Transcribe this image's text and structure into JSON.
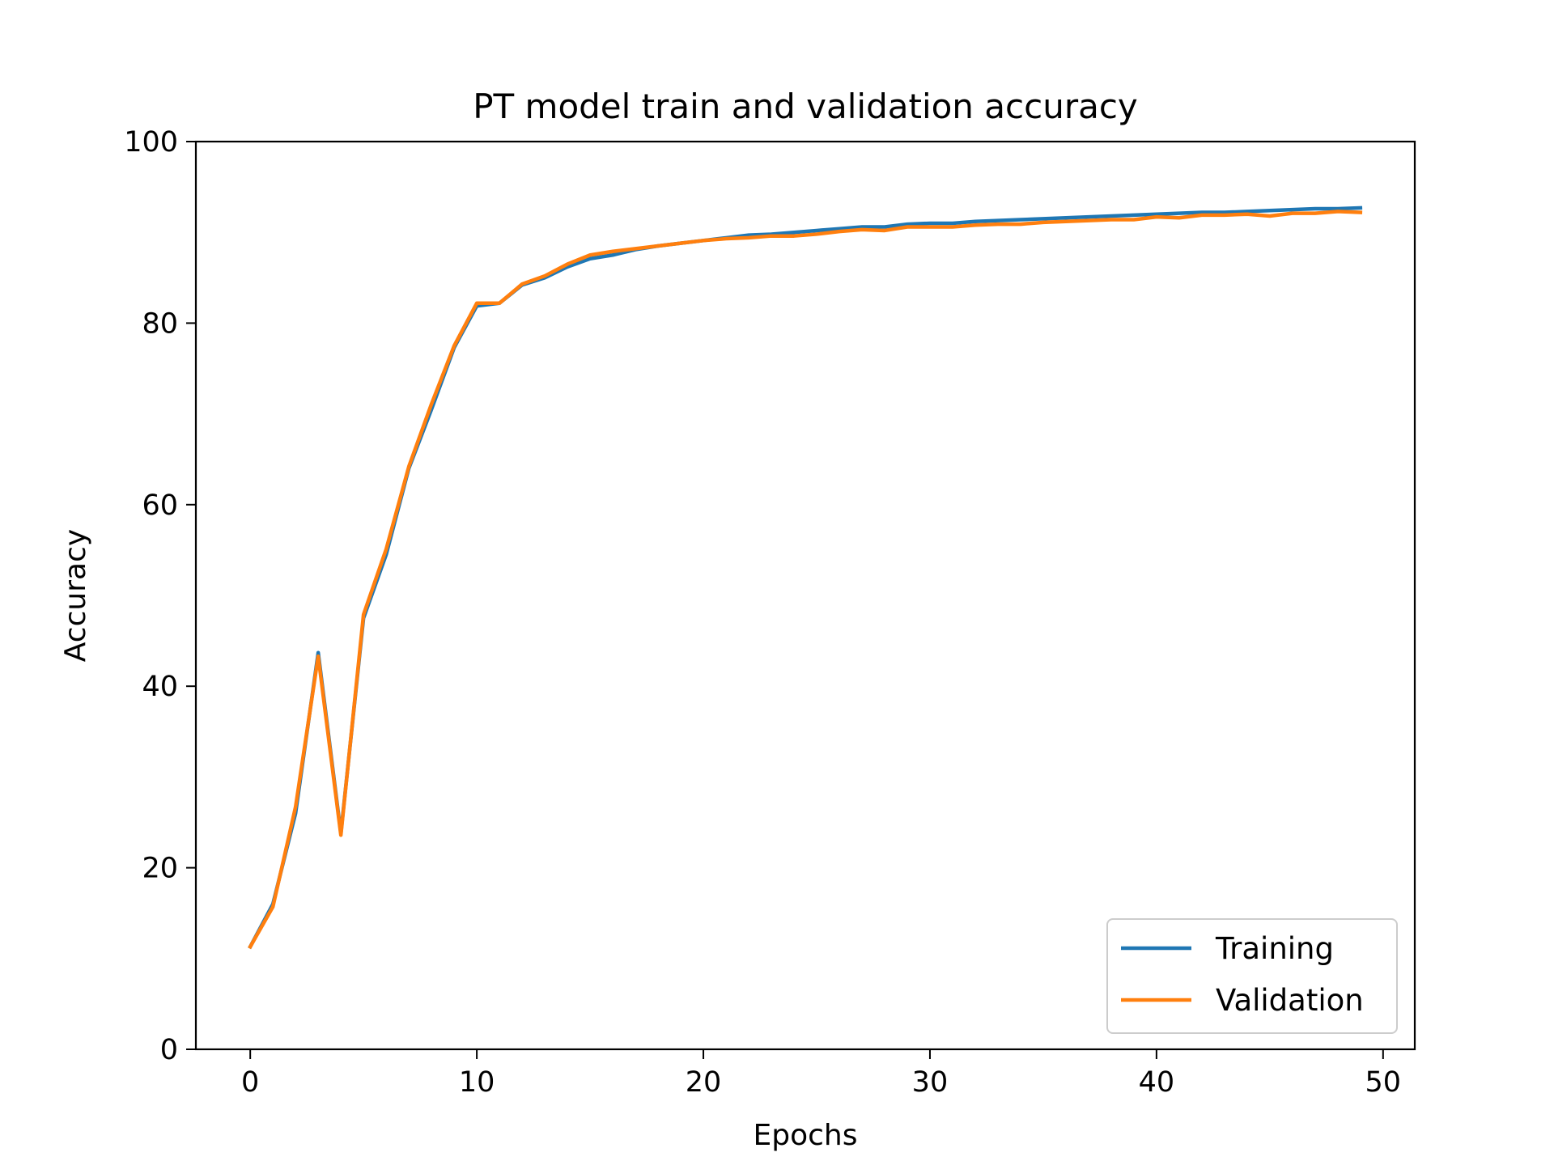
{
  "chart_data": {
    "type": "line",
    "title": "PT model train and validation accuracy",
    "xlabel": "Epochs",
    "ylabel": "Accuracy",
    "xlim": [
      -2.4,
      51.4
    ],
    "ylim": [
      0,
      100
    ],
    "xticks": [
      0,
      10,
      20,
      30,
      40,
      50
    ],
    "yticks": [
      0,
      20,
      40,
      60,
      80,
      100
    ],
    "x": [
      0,
      1,
      2,
      3,
      4,
      5,
      6,
      7,
      8,
      9,
      10,
      11,
      12,
      13,
      14,
      15,
      16,
      17,
      18,
      19,
      20,
      21,
      22,
      23,
      24,
      25,
      26,
      27,
      28,
      29,
      30,
      31,
      32,
      33,
      34,
      35,
      36,
      37,
      38,
      39,
      40,
      41,
      42,
      43,
      44,
      45,
      46,
      47,
      48,
      49
    ],
    "series": [
      {
        "name": "Training",
        "color": "#1f77b4",
        "values": [
          11.3,
          16.0,
          26.0,
          43.7,
          23.8,
          47.5,
          54.5,
          64.0,
          70.5,
          77.3,
          81.9,
          82.2,
          84.2,
          85.0,
          86.2,
          87.1,
          87.5,
          88.1,
          88.5,
          88.8,
          89.1,
          89.4,
          89.7,
          89.8,
          90.0,
          90.2,
          90.4,
          90.6,
          90.6,
          90.9,
          91.0,
          91.0,
          91.2,
          91.3,
          91.4,
          91.5,
          91.6,
          91.7,
          91.8,
          91.9,
          92.0,
          92.1,
          92.2,
          92.2,
          92.3,
          92.4,
          92.5,
          92.6,
          92.6,
          92.7
        ]
      },
      {
        "name": "Validation",
        "color": "#ff7f0e",
        "values": [
          11.3,
          15.7,
          26.7,
          43.3,
          23.6,
          47.9,
          55.1,
          64.2,
          71.1,
          77.5,
          82.2,
          82.2,
          84.3,
          85.2,
          86.5,
          87.5,
          87.9,
          88.2,
          88.5,
          88.8,
          89.1,
          89.3,
          89.4,
          89.6,
          89.6,
          89.8,
          90.1,
          90.3,
          90.2,
          90.6,
          90.6,
          90.6,
          90.8,
          90.9,
          90.9,
          91.1,
          91.2,
          91.3,
          91.4,
          91.4,
          91.7,
          91.6,
          91.9,
          91.9,
          92.0,
          91.8,
          92.1,
          92.1,
          92.3,
          92.2
        ]
      }
    ],
    "legend_position": "lower right",
    "grid": false
  }
}
